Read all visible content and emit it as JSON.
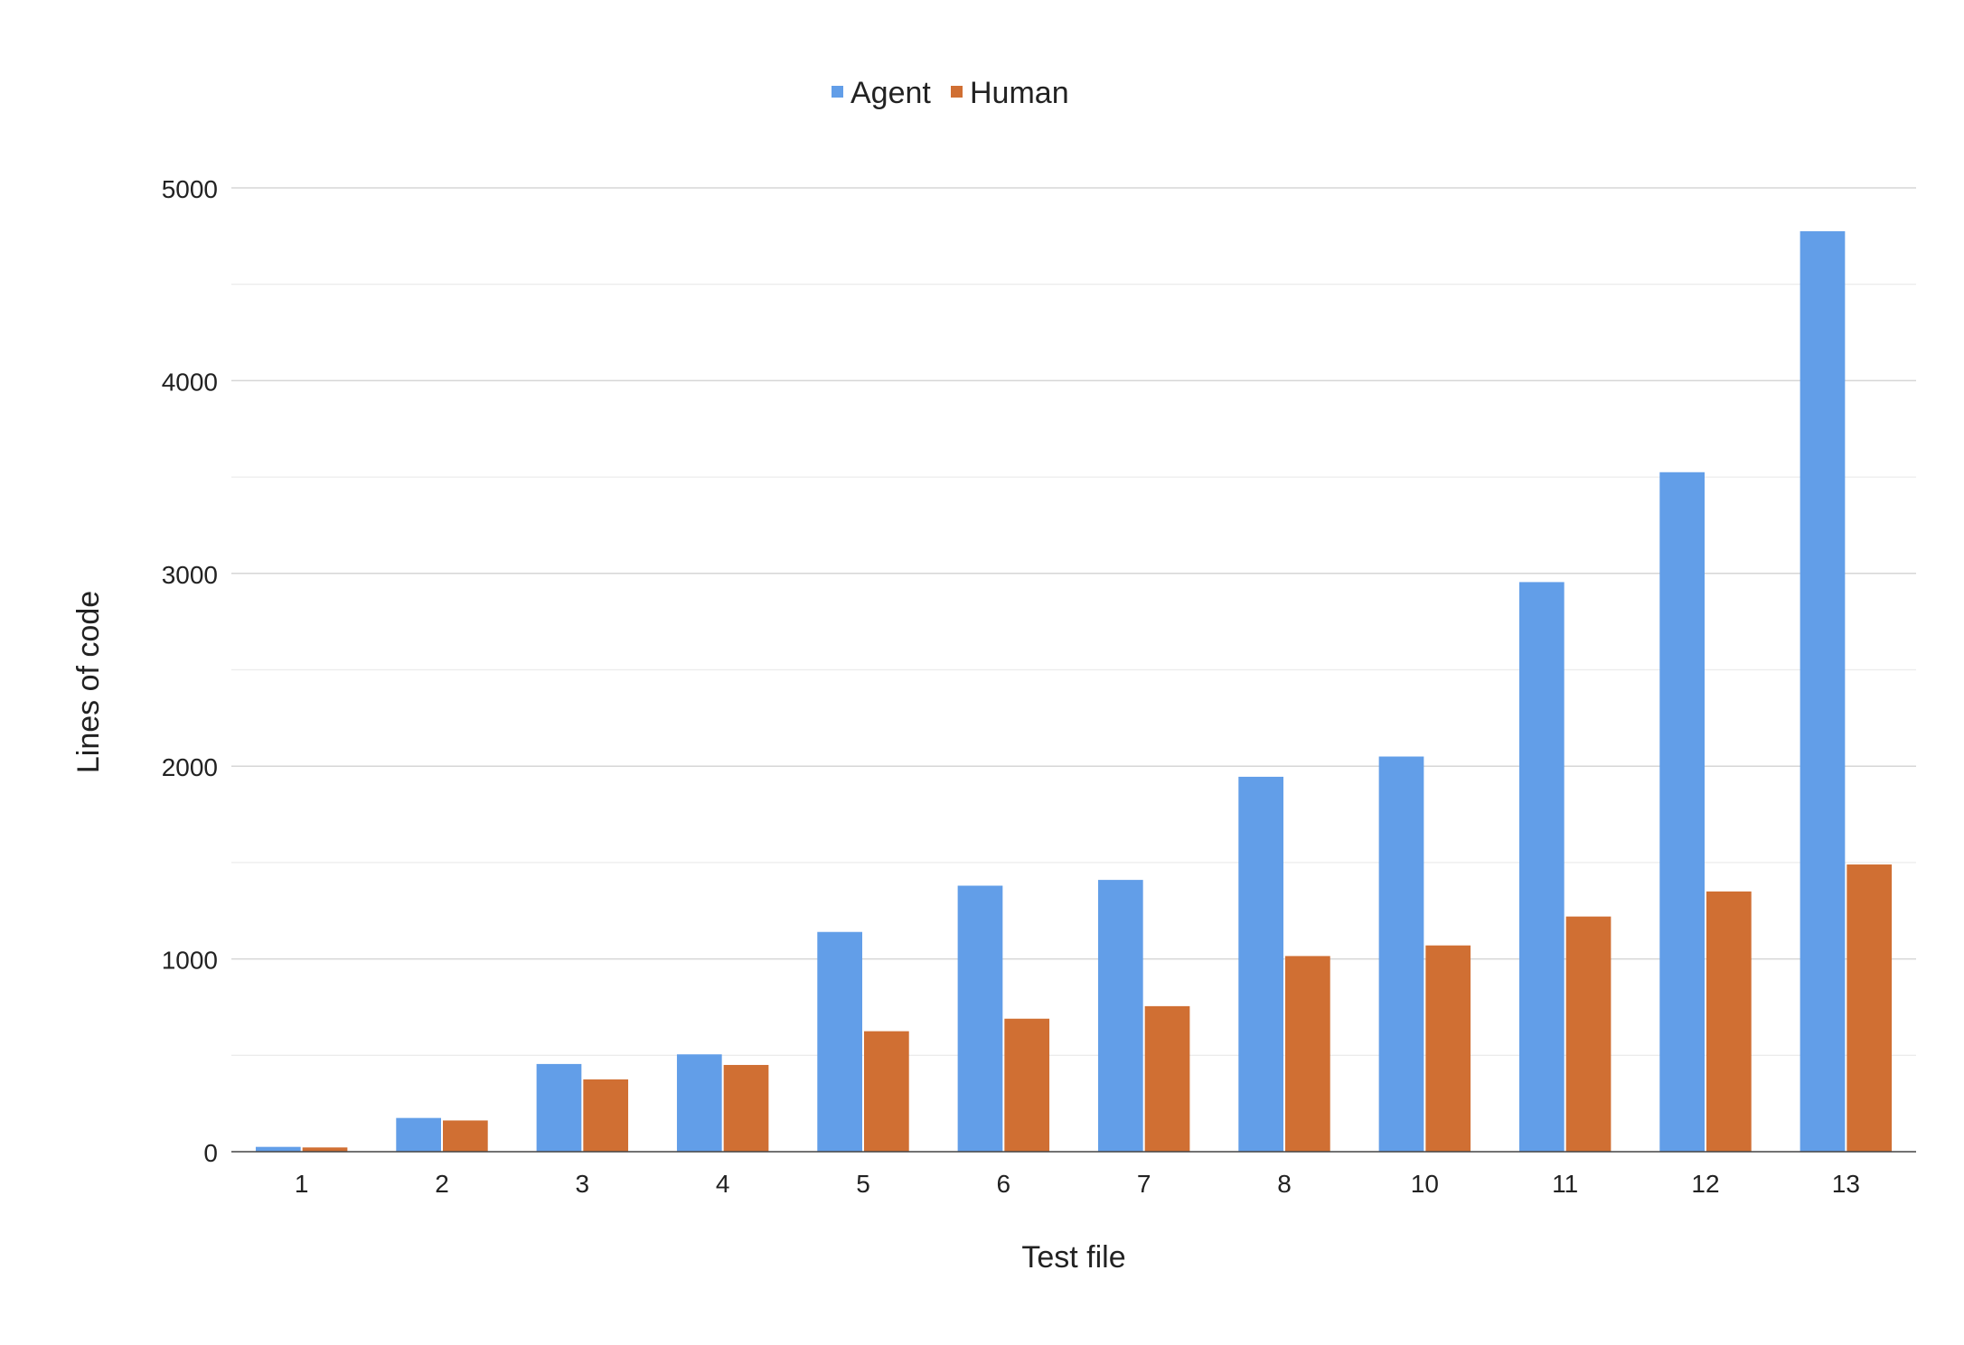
{
  "chart_data": {
    "type": "bar",
    "title": "",
    "xlabel": "Test file",
    "ylabel": "Lines of code",
    "categories": [
      "1",
      "2",
      "3",
      "4",
      "5",
      "6",
      "7",
      "8",
      "10",
      "11",
      "12",
      "13"
    ],
    "series": [
      {
        "name": "Agent",
        "color": "#629ee8",
        "values": [
          25,
          175,
          455,
          505,
          1140,
          1380,
          1410,
          1945,
          2050,
          2955,
          3525,
          4775
        ]
      },
      {
        "name": "Human",
        "color": "#d06f33",
        "values": [
          22,
          162,
          375,
          450,
          625,
          690,
          755,
          1015,
          1070,
          1220,
          1350,
          1490
        ]
      }
    ],
    "ylim": [
      0,
      5000
    ],
    "yticks": [
      0,
      1000,
      2000,
      3000,
      4000,
      5000
    ],
    "grid": true,
    "legend": "top-center"
  }
}
